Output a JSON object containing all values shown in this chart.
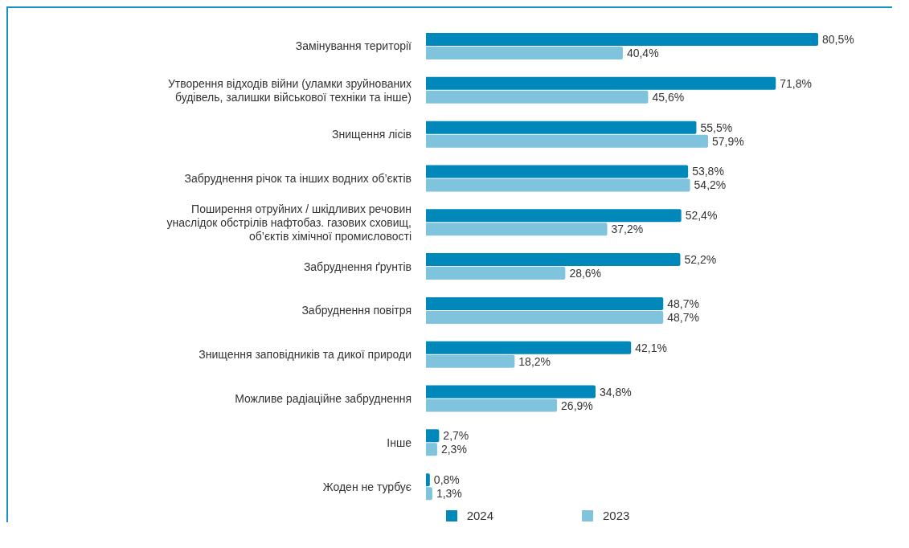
{
  "chart_data": {
    "type": "bar",
    "orientation": "horizontal",
    "categories": [
      "Замінування території",
      "Утворення відходів війни (уламки зруйнованих будівель, залишки військової техніки та інше)",
      "Знищення лісів",
      "Забруднення річок та інших водних об’єктів",
      "Поширення отруйних / шкідливих речовин унаслідок обстрілів нафтобаз. газових сховищ, об’єктів хімічної промисловості",
      "Забруднення ґрунтів",
      "Забруднення повітря",
      "Знищення заповідників та дикої природи",
      "Можливе радіаційне забруднення",
      "Інше",
      "Жоден не турбує"
    ],
    "series": [
      {
        "name": "2024",
        "color": "#0088bb",
        "values": [
          80.5,
          71.8,
          55.5,
          53.8,
          52.4,
          52.2,
          48.7,
          42.1,
          34.8,
          2.7,
          0.8
        ],
        "value_labels": [
          "80,5%",
          "71,8%",
          "55,5%",
          "53,8%",
          "52,4%",
          "52,2%",
          "48,7%",
          "42,1%",
          "34,8%",
          "2,7%",
          "0,8%"
        ]
      },
      {
        "name": "2023",
        "color": "#7fc3dc",
        "values": [
          40.4,
          45.6,
          57.9,
          54.2,
          37.2,
          28.6,
          48.7,
          18.2,
          26.9,
          2.3,
          1.3
        ],
        "value_labels": [
          "40,4%",
          "45,6%",
          "57,9%",
          "54,2%",
          "37,2%",
          "28,6%",
          "48,7%",
          "18,2%",
          "26,9%",
          "2,3%",
          "1,3%"
        ]
      }
    ],
    "legend": "bottom"
  }
}
